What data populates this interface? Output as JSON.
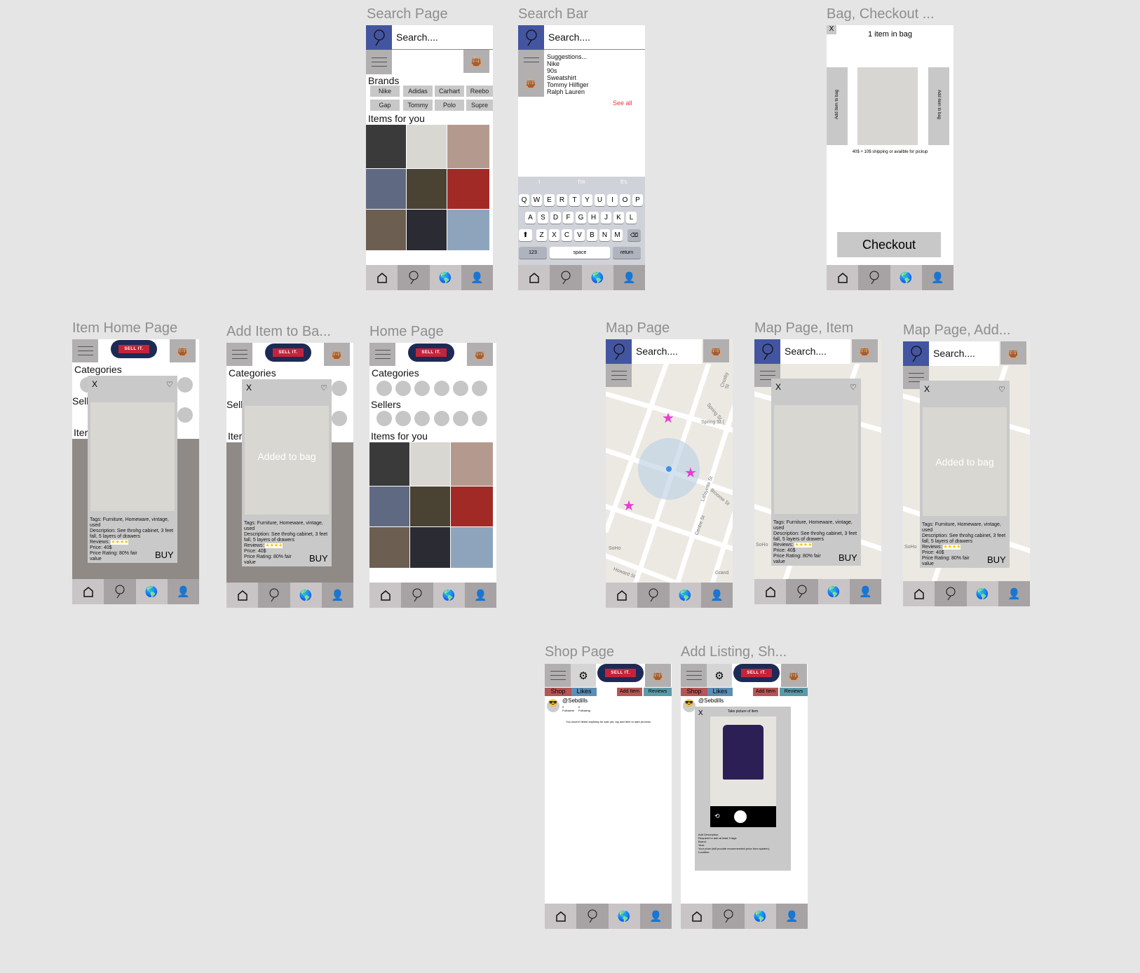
{
  "frames": {
    "search_page": "Search Page",
    "search_bar": "Search Bar",
    "bag_checkout": "Bag, Checkout ...",
    "item_home": "Item Home Page",
    "add_item_bag": "Add Item to Ba...",
    "home": "Home Page",
    "map": "Map Page",
    "map_item": "Map Page, Item",
    "map_add": "Map Page, Add...",
    "shop": "Shop Page",
    "add_listing": "Add Listing, Sh..."
  },
  "search": {
    "placeholder": "Search...."
  },
  "brands": {
    "title": "Brands",
    "items": [
      "Nike",
      "Adidas",
      "Carhart",
      "Reebo",
      "Gap",
      "Tommy",
      "Polo",
      "Supre"
    ]
  },
  "sections": {
    "items_for_you": "Items for you",
    "categories": "Categories",
    "sellers": "Sellers",
    "sell_trunc": "Sell",
    "item_trunc": "Iter"
  },
  "suggestions": {
    "title": "Suggestions...",
    "items": [
      "Nike",
      "90s",
      "Sweatshirt",
      "Tommy Hilfiger",
      "Ralph Lauren"
    ],
    "see_all": "See all"
  },
  "keyboard": {
    "predictions": [
      "I",
      "I'm",
      "It's"
    ],
    "row1": [
      "Q",
      "W",
      "E",
      "R",
      "T",
      "Y",
      "U",
      "I",
      "O",
      "P"
    ],
    "row2": [
      "A",
      "S",
      "D",
      "F",
      "G",
      "H",
      "J",
      "K",
      "L"
    ],
    "row3": [
      "Z",
      "X",
      "C",
      "V",
      "B",
      "N",
      "M"
    ],
    "numbers": "123",
    "space": "space",
    "return": "return"
  },
  "bag": {
    "close": "X",
    "count": "1 item in bag",
    "add_left": "Add item to bag",
    "add_right": "Add item to bag",
    "price_line": "40$ + 10$ shipping or availble for pickup",
    "checkout": "Checkout"
  },
  "item_popup": {
    "close": "X",
    "heart": "♡",
    "tags": "Tags: Furniture, Homeware, vintage, used",
    "description": "Description: See throhg cabinet, 3 feet fall, 5 layers of drawers",
    "reviews": "Reviews:",
    "stars": "★★★★",
    "price": "Price: 40$",
    "price_rating": "Price Rating: 80% fair value",
    "buy": "BUY",
    "added": "Added to bag"
  },
  "logo": {
    "text": "SELL IT."
  },
  "map_labels": {
    "spring1": "Spring St",
    "spring2": "Spring St (",
    "broome": "Broome St",
    "lafayette": "Lafayette St",
    "crosby": "Crosby St",
    "centre": "Centre St",
    "grand": "Grand",
    "soho": "SoHo",
    "howard": "Howard St"
  },
  "shop": {
    "tabs": [
      "Shop",
      "Likes",
      "Add Item",
      "Reviews"
    ],
    "username": "@Sebdills",
    "followers_label": "Followers",
    "followers_count": "0",
    "following_label": "Following",
    "following_count": "0",
    "empty": "You haven't listed anything for sale yet, tap add item to start process",
    "listing": {
      "close": "X",
      "title": "Take picture of item",
      "lines": [
        "Add Description:",
        "Required to add at least 3 tags",
        "Brand:",
        "Year:",
        "Your price (will provide recommended price from system):",
        "Location:"
      ]
    }
  },
  "tabbar_icons": [
    "home-icon",
    "search-icon",
    "globe-icon",
    "profile-icon"
  ],
  "colors": {
    "accent": "#4355a0",
    "pink": "#e33fd0",
    "red": "#c4243b",
    "navy": "#1d2a55"
  }
}
